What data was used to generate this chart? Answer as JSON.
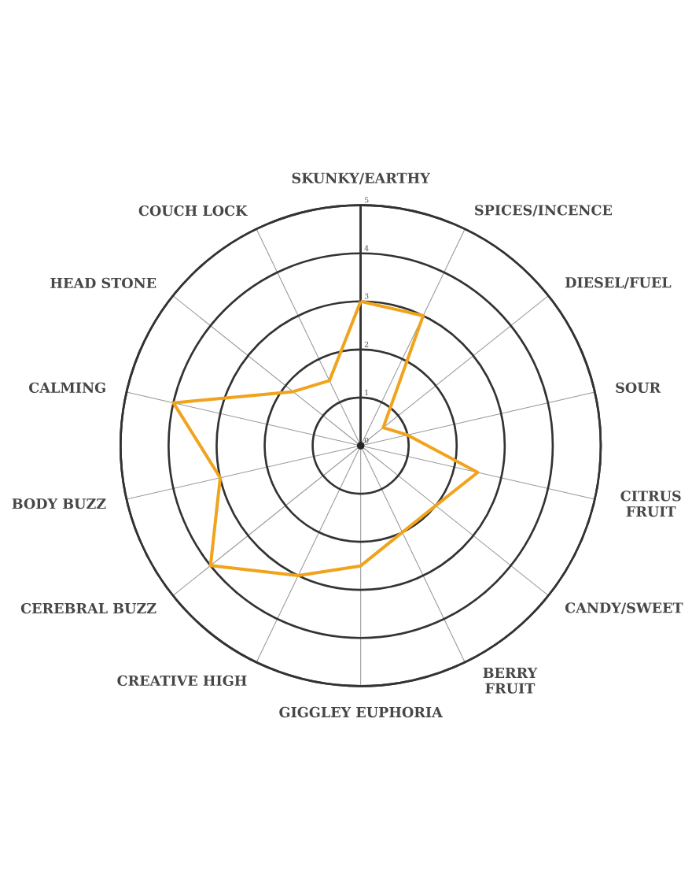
{
  "chart_data": {
    "type": "radar",
    "categories": [
      "SKUNKY/EARTHY",
      "SPICES/INCENCE",
      "DIESEL/FUEL",
      "SOUR",
      "CITRUS FRUIT",
      "CANDY/SWEET",
      "BERRY FRUIT",
      "GIGGLEY EUPHORIA",
      "CREATIVE HIGH",
      "CEREBRAL BUZZ",
      "BODY BUZZ",
      "CALMING",
      "HEAD STONE",
      "COUCH LOCK"
    ],
    "series": [
      {
        "color": "#f0a31c",
        "values": [
          3,
          3,
          0.6,
          1,
          2.5,
          2,
          2,
          2.5,
          3,
          4,
          3,
          4,
          1.8,
          1.5
        ]
      }
    ],
    "ylim": [
      0,
      5
    ],
    "yticks": [
      0,
      1,
      2,
      3,
      4,
      5
    ],
    "grid": true
  }
}
